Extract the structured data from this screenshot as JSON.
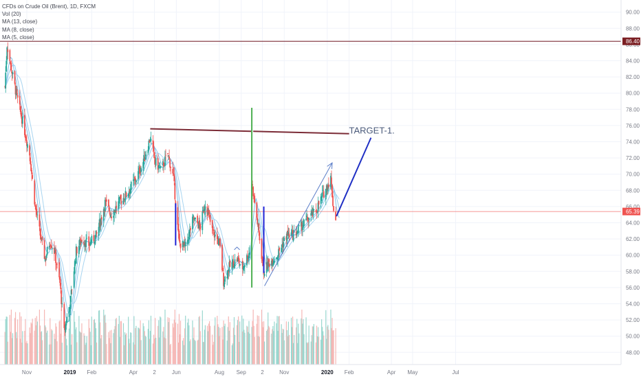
{
  "chart_data": {
    "type": "candlestick",
    "title": "CFDs on Crude Oil (Brent), 1D, FXCM",
    "legend": [
      "Vol (20)",
      "MA (13, close)",
      "MA (8, close)",
      "MA (5, close)"
    ],
    "legend_placement": "top-left",
    "y_axis": {
      "position": "right",
      "range": [
        46.5,
        91.5
      ],
      "ticks": [
        "48.00",
        "50.00",
        "52.00",
        "54.00",
        "56.00",
        "58.00",
        "60.00",
        "62.00",
        "64.00",
        "66.00",
        "68.00",
        "70.00",
        "72.00",
        "74.00",
        "76.00",
        "78.00",
        "80.00",
        "82.00",
        "84.00",
        "86.00",
        "88.00",
        "90.00"
      ]
    },
    "x_axis": {
      "ticks": [
        "Nov",
        "2019",
        "Feb",
        "Apr",
        "2",
        "Jun",
        "Aug",
        "Sep",
        "2",
        "Nov",
        "2020",
        "Feb",
        "Apr",
        "May",
        "Jul"
      ]
    },
    "grid": true,
    "price_labels": [
      {
        "text": "86.40",
        "value": 86.4,
        "color": "#7b1f23"
      },
      {
        "text": "65.39",
        "value": 65.39,
        "color": "#ef5350"
      }
    ],
    "close_path": [
      [
        "2018-10-01",
        80.8
      ],
      [
        "2018-10-04",
        86.0
      ],
      [
        "2018-10-10",
        83.0
      ],
      [
        "2018-10-18",
        79.5
      ],
      [
        "2018-10-26",
        76.5
      ],
      [
        "2018-11-05",
        72.5
      ],
      [
        "2018-11-13",
        66.0
      ],
      [
        "2018-11-20",
        62.5
      ],
      [
        "2018-11-27",
        59.5
      ],
      [
        "2018-12-04",
        61.8
      ],
      [
        "2018-12-10",
        60.5
      ],
      [
        "2018-12-18",
        56.5
      ],
      [
        "2018-12-24",
        50.5
      ],
      [
        "2019-01-02",
        54.5
      ],
      [
        "2019-01-10",
        60.5
      ],
      [
        "2019-01-18",
        62.0
      ],
      [
        "2019-01-28",
        61.3
      ],
      [
        "2019-02-08",
        62.5
      ],
      [
        "2019-02-20",
        66.5
      ],
      [
        "2019-03-01",
        65.0
      ],
      [
        "2019-03-12",
        66.5
      ],
      [
        "2019-03-22",
        67.5
      ],
      [
        "2019-04-05",
        69.5
      ],
      [
        "2019-04-15",
        71.5
      ],
      [
        "2019-04-25",
        74.5
      ],
      [
        "2019-05-02",
        71.5
      ],
      [
        "2019-05-10",
        70.5
      ],
      [
        "2019-05-20",
        72.5
      ],
      [
        "2019-05-28",
        69.5
      ],
      [
        "2019-06-05",
        61.5
      ],
      [
        "2019-06-14",
        61.0
      ],
      [
        "2019-06-25",
        64.5
      ],
      [
        "2019-07-05",
        63.5
      ],
      [
        "2019-07-12",
        66.5
      ],
      [
        "2019-07-22",
        63.0
      ],
      [
        "2019-08-01",
        61.5
      ],
      [
        "2019-08-07",
        56.8
      ],
      [
        "2019-08-15",
        58.5
      ],
      [
        "2019-08-26",
        59.5
      ],
      [
        "2019-09-03",
        58.5
      ],
      [
        "2019-09-13",
        60.5
      ],
      [
        "2019-09-16",
        69.0
      ],
      [
        "2019-09-24",
        64.0
      ],
      [
        "2019-10-03",
        58.0
      ],
      [
        "2019-10-10",
        59.0
      ],
      [
        "2019-10-22",
        60.0
      ],
      [
        "2019-11-05",
        62.5
      ],
      [
        "2019-11-15",
        62.5
      ],
      [
        "2019-11-25",
        63.5
      ],
      [
        "2019-12-05",
        64.5
      ],
      [
        "2019-12-16",
        65.5
      ],
      [
        "2019-12-26",
        67.5
      ],
      [
        "2020-01-06",
        69.5
      ],
      [
        "2020-01-10",
        65.5
      ],
      [
        "2020-01-14",
        64.4
      ]
    ],
    "moving_averages": [
      {
        "name": "MA (5, close)",
        "lag_days": 5
      },
      {
        "name": "MA (8, close)",
        "lag_days": 9
      },
      {
        "name": "MA (13, close)",
        "lag_days": 15
      }
    ],
    "annotations": {
      "resistance_line": {
        "from": [
          "2019-04-25",
          75.6
        ],
        "to": [
          "2020-02-01",
          75.0
        ],
        "gap": [
          "2019-09-15",
          "2019-09-18"
        ],
        "color": "#7b2b36"
      },
      "horizontal_line": {
        "value": 86.4,
        "color": "#7b2b36"
      },
      "current_price_line": {
        "value": 65.39,
        "color": "#ef5350"
      },
      "green_vertical": {
        "date": "2019-09-16",
        "from": 56.0,
        "to": 78.2,
        "color": "#4caf50"
      },
      "blue_verticals": [
        {
          "date": "2019-05-31",
          "from": 66.4,
          "to": 61.2
        },
        {
          "date": "2019-10-03",
          "from": 66.0,
          "to": 57.8
        }
      ],
      "trend_arrow": {
        "from": [
          "2019-10-04",
          56.2
        ],
        "to": [
          "2020-01-08",
          71.4
        ],
        "color": "#5b7dc8"
      },
      "target_path": [
        [
          "2020-01-14",
          64.8
        ],
        [
          "2020-03-03",
          74.5
        ]
      ],
      "target_label": {
        "text": "TARGET-1.",
        "date": "2020-01-28",
        "value": 75.0,
        "color": "#4a5a7a"
      },
      "small_arrow": {
        "date": "2019-08-26",
        "value": 61.0
      }
    },
    "volume": {
      "max_relative": 1.0,
      "colors": {
        "up": "#9ad7cf",
        "down": "#f5b7b5"
      }
    }
  }
}
